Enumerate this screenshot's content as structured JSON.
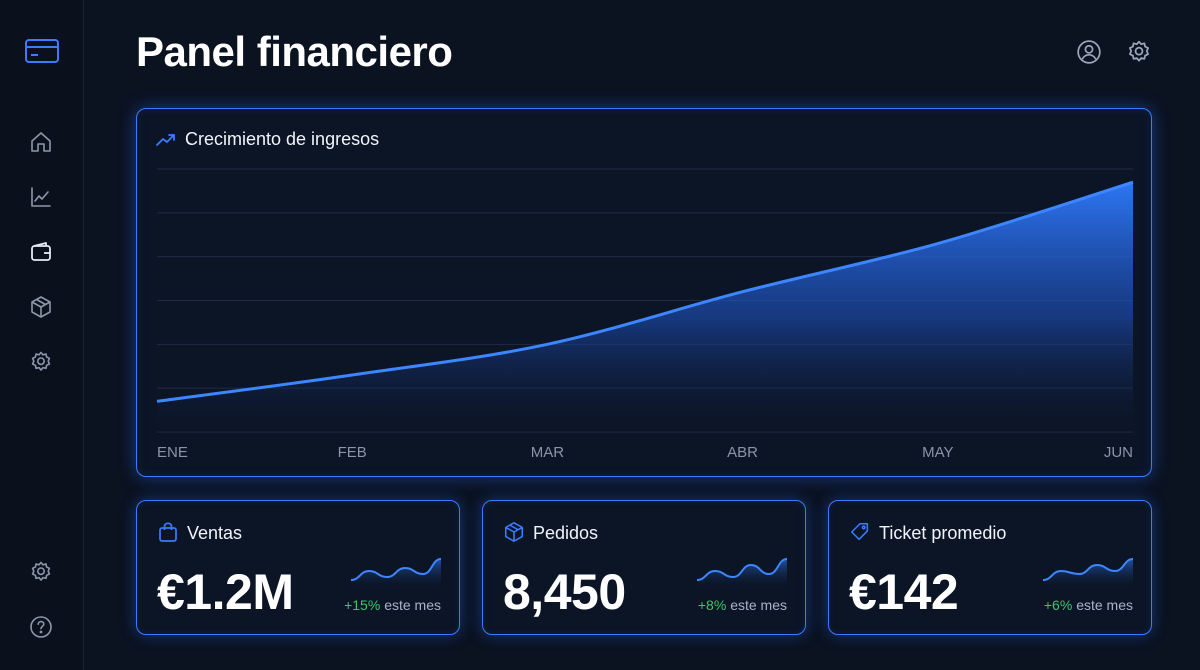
{
  "header": {
    "title": "Panel financiero",
    "icons": [
      "user-circle-icon",
      "settings-gear-icon"
    ]
  },
  "sidebar": {
    "brand_icon": "credit-card-icon",
    "items": [
      {
        "icon": "home-icon"
      },
      {
        "icon": "chart-line-icon"
      },
      {
        "icon": "wallet-icon",
        "active": true
      },
      {
        "icon": "box-icon"
      },
      {
        "icon": "settings-icon"
      }
    ],
    "bottom_items": [
      {
        "icon": "settings-icon"
      },
      {
        "icon": "help-icon"
      }
    ]
  },
  "colors": {
    "accent": "#3a7bff",
    "background": "#0b1220",
    "positive": "#3ec46d"
  },
  "revenue_chart": {
    "title": "Crecimiento de ingresos",
    "icon": "trend-up-icon"
  },
  "chart_data": {
    "type": "area",
    "title": "Crecimiento de ingresos",
    "categories": [
      "ENE",
      "FEB",
      "MAR",
      "ABR",
      "MAY",
      "JUN"
    ],
    "values": [
      7,
      13,
      20,
      32,
      43,
      57
    ],
    "ylim": [
      0,
      60
    ],
    "grid": true,
    "xlabel": "",
    "ylabel": ""
  },
  "stats": [
    {
      "label": "Ventas",
      "value": "€1.2M",
      "change": "+15%",
      "period": "este mes",
      "icon": "shopping-bag-icon",
      "spark": [
        3,
        6,
        4,
        7,
        5,
        10
      ]
    },
    {
      "label": "Pedidos",
      "value": "8,450",
      "change": "+8%",
      "period": "este mes",
      "icon": "box-icon",
      "spark": [
        3,
        6,
        4,
        8,
        5,
        10
      ]
    },
    {
      "label": "Ticket promedio",
      "value": "€142",
      "change": "+6%",
      "period": "este mes",
      "icon": "tag-icon",
      "spark": [
        3,
        6,
        5,
        8,
        6,
        10
      ]
    }
  ]
}
